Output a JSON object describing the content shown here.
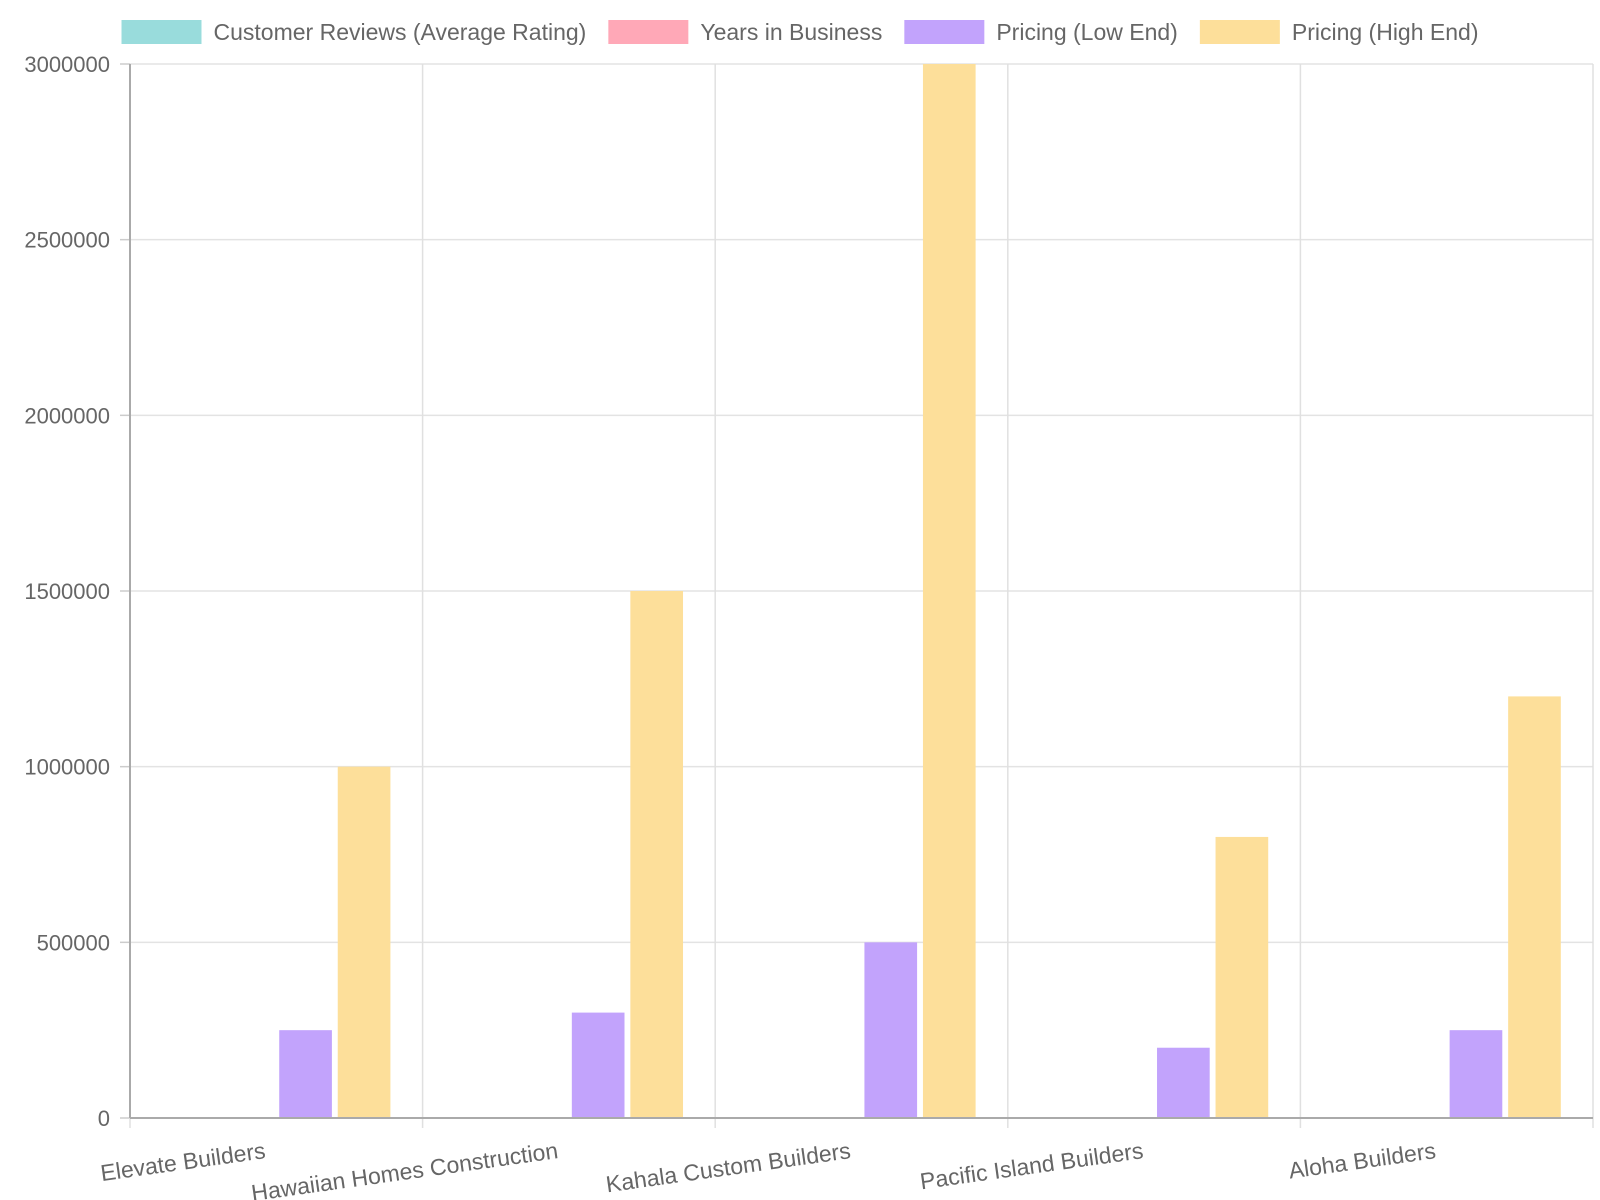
{
  "chart_data": {
    "type": "bar",
    "categories": [
      "Elevate Builders",
      "Hawaiian Homes Construction",
      "Kahala Custom Builders",
      "Pacific Island Builders",
      "Aloha Builders"
    ],
    "series": [
      {
        "name": "Customer Reviews (Average Rating)",
        "color": "#99dcdc",
        "values": [
          4.8,
          4.5,
          4.7,
          4.3,
          4.6
        ]
      },
      {
        "name": "Years in Business",
        "color": "#ffa8b7",
        "values": [
          15,
          20,
          25,
          10,
          18
        ]
      },
      {
        "name": "Pricing (Low End)",
        "color": "#c2a3fc",
        "values": [
          250000,
          300000,
          500000,
          200000,
          250000
        ]
      },
      {
        "name": "Pricing (High End)",
        "color": "#fddf9a",
        "values": [
          1000000,
          1500000,
          3000000,
          800000,
          1200000
        ]
      }
    ],
    "ylim": [
      0,
      3000000
    ],
    "yticks": [
      "0",
      "500000",
      "1000000",
      "1500000",
      "2000000",
      "2500000",
      "3000000"
    ],
    "grid": true,
    "legend": "top"
  }
}
